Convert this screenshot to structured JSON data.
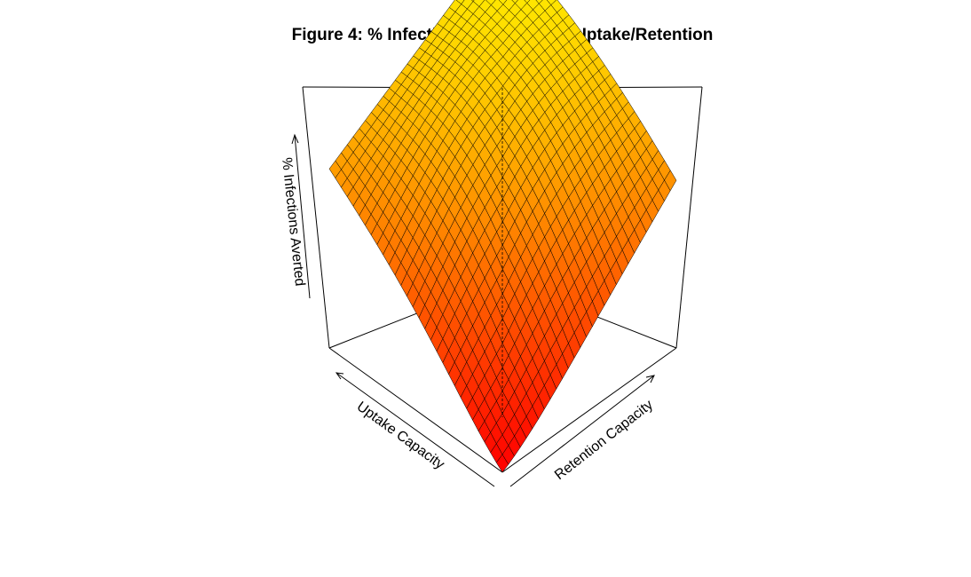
{
  "chart_data": {
    "type": "surface",
    "title": "Figure 4: % Infections Averted 3D - Uptake/Retention",
    "xlabel": "Uptake Capacity",
    "ylabel": "Retention Capacity",
    "zlabel": "% Infections Averted",
    "grid_size": [
      30,
      30
    ],
    "colors": {
      "low": "#ff0000",
      "high": "#ffff00"
    },
    "surface_points": [
      {
        "corner": "front",
        "uptake": 0,
        "retention": 0,
        "z": 0
      },
      {
        "corner": "left",
        "uptake": 1,
        "retention": 0,
        "z": 0.62
      },
      {
        "corner": "right",
        "uptake": 0,
        "retention": 1,
        "z": 0.58
      },
      {
        "corner": "back",
        "uptake": 1,
        "retention": 1,
        "z": 1.0
      }
    ]
  }
}
